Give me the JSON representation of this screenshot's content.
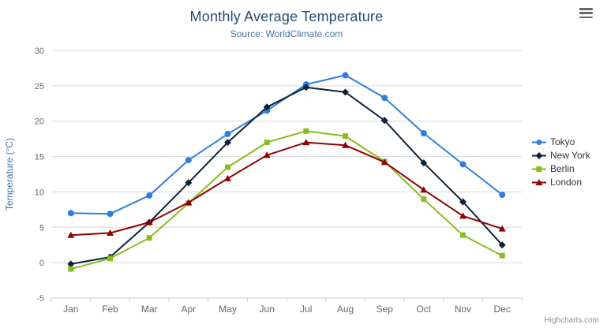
{
  "header": {
    "title": "Monthly Average Temperature",
    "subtitle": "Source: WorldClimate.com"
  },
  "credits": "Highcharts.com",
  "chart_data": {
    "type": "line",
    "title": "Monthly Average Temperature",
    "subtitle": "Source: WorldClimate.com",
    "categories": [
      "Jan",
      "Feb",
      "Mar",
      "Apr",
      "May",
      "Jun",
      "Jul",
      "Aug",
      "Sep",
      "Oct",
      "Nov",
      "Dec"
    ],
    "series": [
      {
        "name": "Tokyo",
        "color": "#2f7ed8",
        "marker": "circle",
        "values": [
          7.0,
          6.9,
          9.5,
          14.5,
          18.2,
          21.5,
          25.2,
          26.5,
          23.3,
          18.3,
          13.9,
          9.6
        ]
      },
      {
        "name": "New York",
        "color": "#0d233a",
        "marker": "diamond",
        "values": [
          -0.2,
          0.8,
          5.7,
          11.3,
          17.0,
          22.0,
          24.8,
          24.1,
          20.1,
          14.1,
          8.6,
          2.5
        ]
      },
      {
        "name": "Berlin",
        "color": "#8bbc21",
        "marker": "square",
        "values": [
          -0.9,
          0.6,
          3.5,
          8.4,
          13.5,
          17.0,
          18.6,
          17.9,
          14.3,
          9.0,
          3.9,
          1.0
        ]
      },
      {
        "name": "London",
        "color": "#910000",
        "marker": "triangle",
        "values": [
          3.9,
          4.2,
          5.7,
          8.5,
          11.9,
          15.2,
          17.0,
          16.6,
          14.2,
          10.3,
          6.6,
          4.8
        ]
      }
    ],
    "xlabel": "",
    "ylabel": "Temperature (°C)",
    "ylim": [
      -5,
      30
    ],
    "tick_interval": 5,
    "grid": true,
    "legend_position": "right"
  },
  "colors": {
    "title": "#274b6d",
    "subtitle": "#4572a7",
    "axis_label": "#666666",
    "axis_title": "#4572a7",
    "grid": "#d8d8d8",
    "axis_line": "#c0d0e0",
    "legend_text": "#333333",
    "credits": "#909090"
  }
}
